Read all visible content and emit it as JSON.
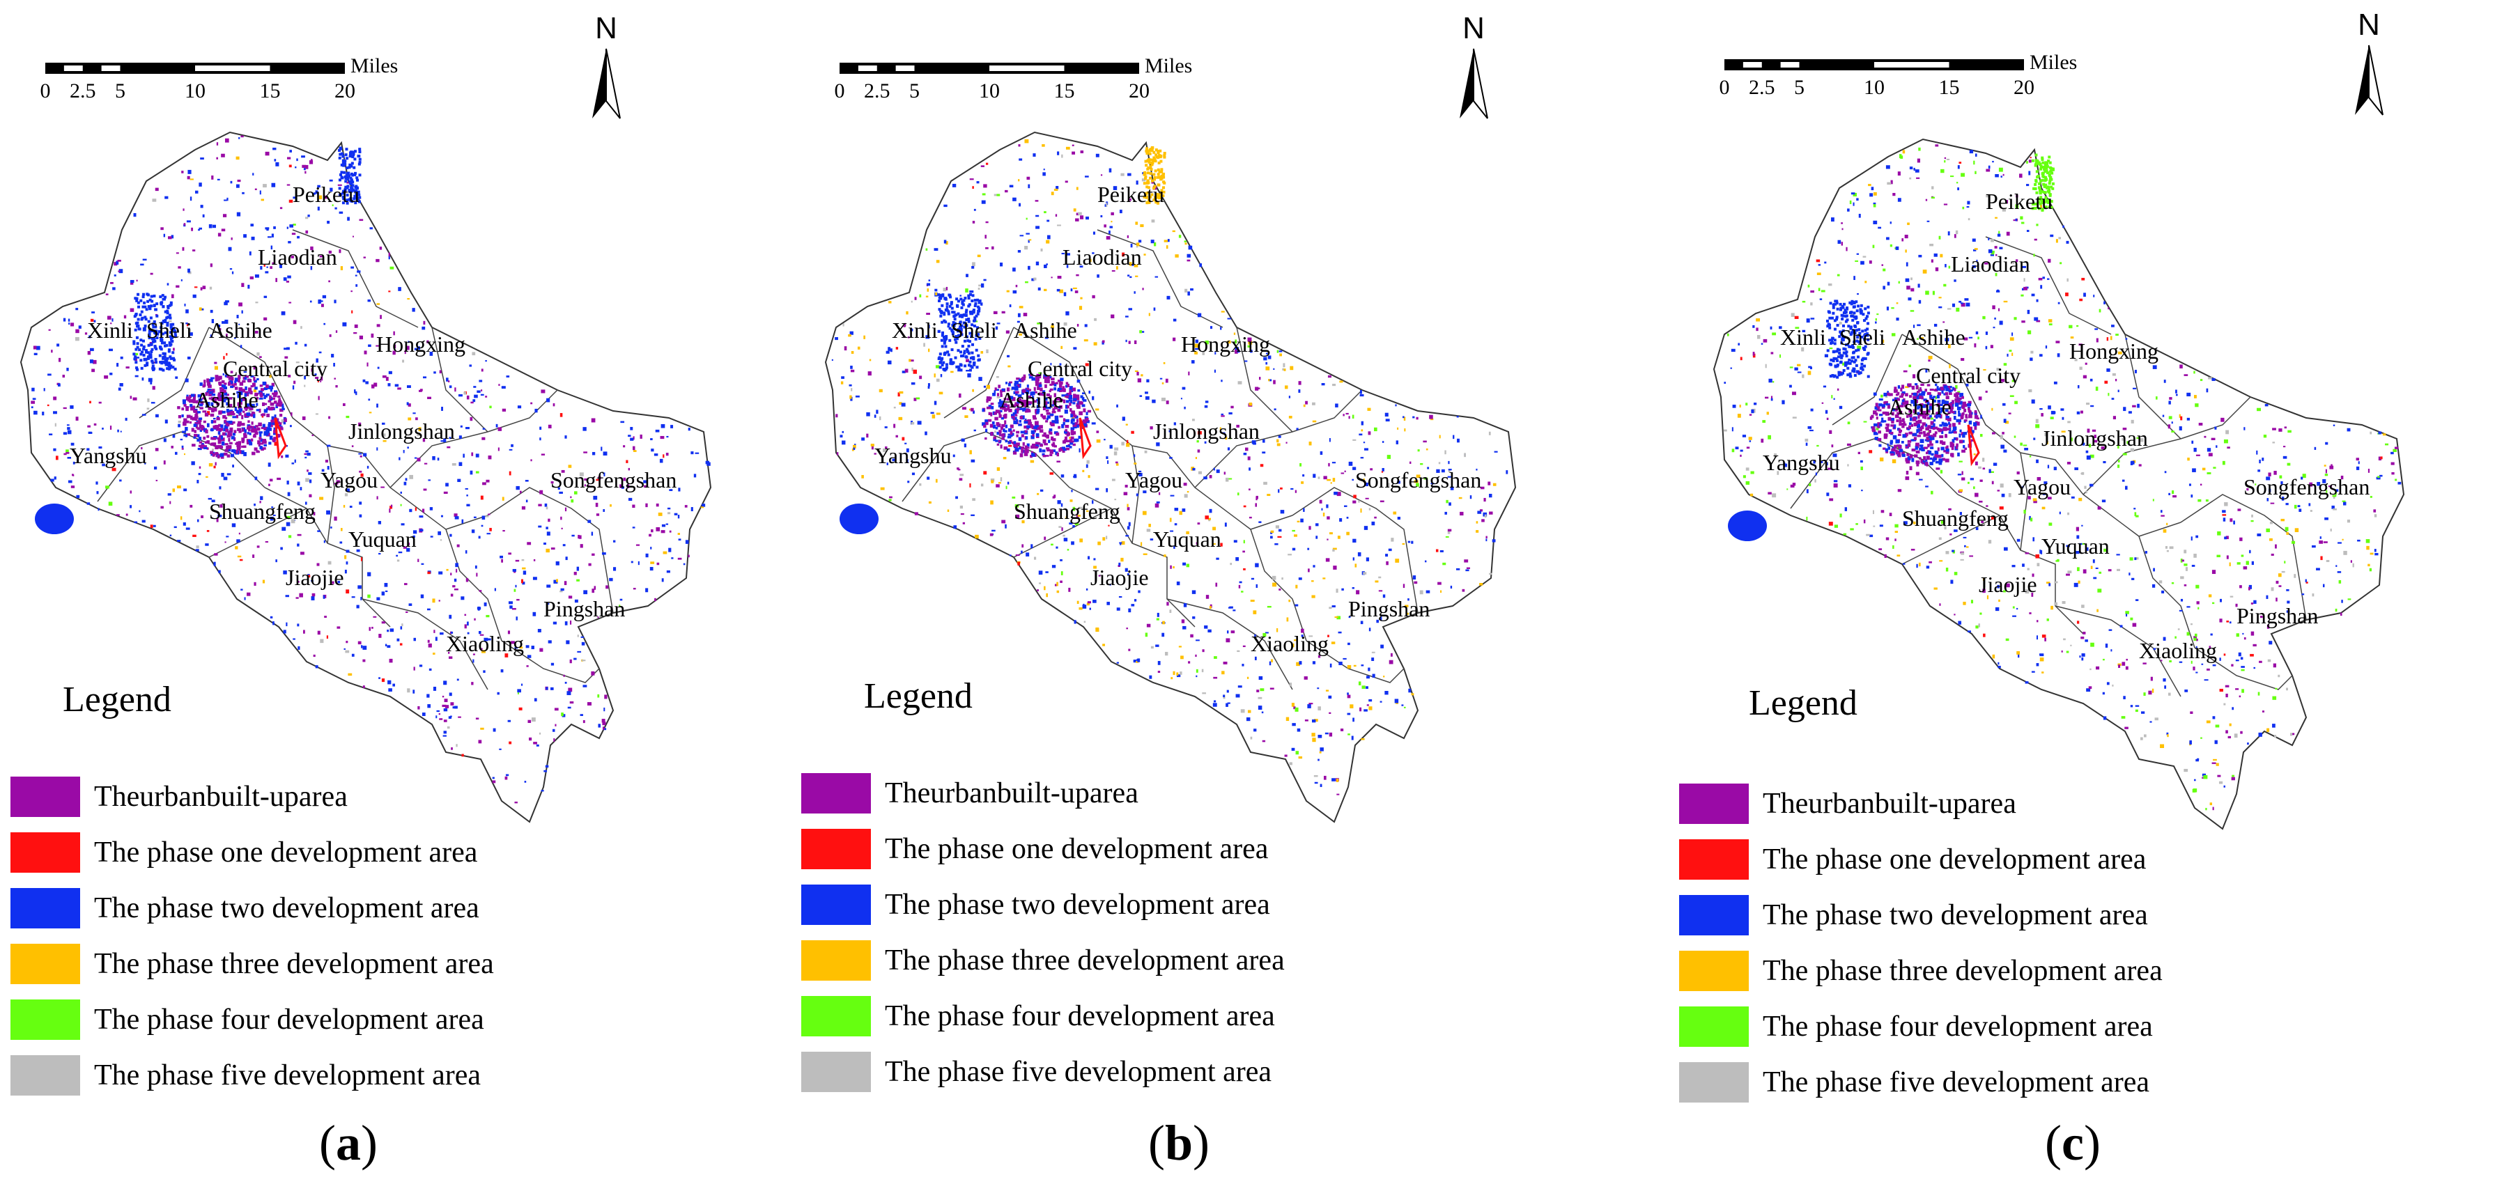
{
  "scale_bar": {
    "ticks": [
      "0",
      "2.5",
      "5",
      "10",
      "15",
      "20"
    ],
    "unit": "Miles"
  },
  "north": "N",
  "legend": {
    "title": "Legend",
    "items": [
      {
        "label": "Theurbanbuilt-uparea",
        "color": "#9a0aa6"
      },
      {
        "label": "The phase one development area",
        "color": "#ff1010"
      },
      {
        "label": "The phase two development area",
        "color": "#1030f0"
      },
      {
        "label": "The phase three development area",
        "color": "#ffc000"
      },
      {
        "label": "The phase four development area",
        "color": "#66ff10"
      },
      {
        "label": "The phase five development area",
        "color": "#bdbdbd"
      }
    ]
  },
  "places": [
    "Peiketu",
    "Liaodian",
    "Xinli",
    "Sheli",
    "Ashihe",
    "Central city",
    "Hongxing",
    "Ashihe",
    "Jinlongshan",
    "Yangshu",
    "Yagou",
    "Songfengshan",
    "Shuangfeng",
    "Yuquan",
    "Jiaojie",
    "Pingshan",
    "Xiaoling"
  ],
  "panels": [
    {
      "id": "a",
      "label": "a"
    },
    {
      "id": "b",
      "label": "b"
    },
    {
      "id": "c",
      "label": "c"
    }
  ]
}
